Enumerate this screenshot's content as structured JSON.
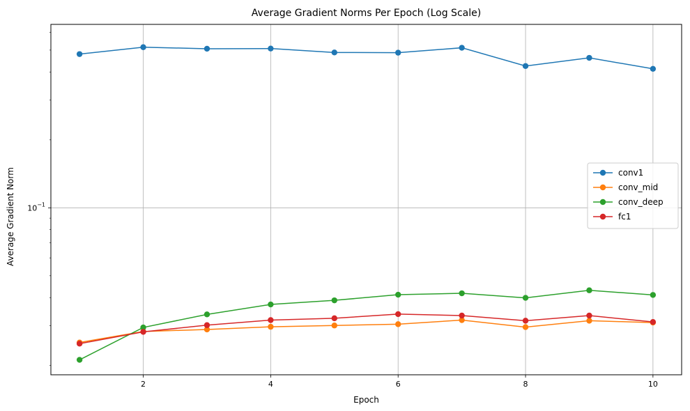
{
  "chart_data": {
    "type": "line",
    "title": "Average Gradient Norms Per Epoch (Log Scale)",
    "xlabel": "Epoch",
    "ylabel": "Average Gradient Norm",
    "yscale": "log",
    "x": [
      1,
      2,
      3,
      4,
      5,
      6,
      7,
      8,
      9,
      10
    ],
    "xlim": [
      0.55,
      10.45
    ],
    "ylim": [
      0.0182,
      0.65
    ],
    "xticks": [
      2,
      4,
      6,
      8,
      10
    ],
    "yticks": [
      {
        "value": 0.1,
        "base": "10",
        "exp": "−1"
      }
    ],
    "grid": true,
    "legend_position": "center-right",
    "series": [
      {
        "name": "conv1",
        "color": "#1f77b4",
        "values": [
          0.48,
          0.515,
          0.507,
          0.508,
          0.488,
          0.487,
          0.512,
          0.425,
          0.462,
          0.413
        ]
      },
      {
        "name": "conv_mid",
        "color": "#ff7f0e",
        "values": [
          0.0253,
          0.0283,
          0.0289,
          0.0297,
          0.0301,
          0.0305,
          0.0318,
          0.0296,
          0.0316,
          0.031
        ]
      },
      {
        "name": "conv_deep",
        "color": "#2ca02c",
        "values": [
          0.0212,
          0.0295,
          0.0337,
          0.0373,
          0.0389,
          0.0412,
          0.0418,
          0.0399,
          0.0431,
          0.0411
        ]
      },
      {
        "name": "fc1",
        "color": "#d62728",
        "values": [
          0.025,
          0.0282,
          0.0302,
          0.0318,
          0.0324,
          0.0338,
          0.0333,
          0.0316,
          0.0333,
          0.0312
        ]
      }
    ]
  }
}
